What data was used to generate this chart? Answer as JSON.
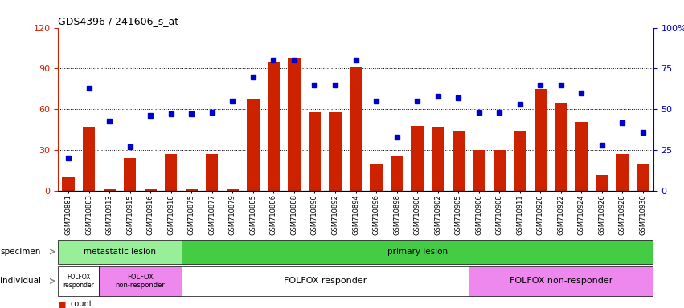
{
  "title": "GDS4396 / 241606_s_at",
  "samples": [
    "GSM710881",
    "GSM710883",
    "GSM710913",
    "GSM710915",
    "GSM710916",
    "GSM710918",
    "GSM710875",
    "GSM710877",
    "GSM710879",
    "GSM710885",
    "GSM710886",
    "GSM710888",
    "GSM710890",
    "GSM710892",
    "GSM710894",
    "GSM710896",
    "GSM710898",
    "GSM710900",
    "GSM710902",
    "GSM710905",
    "GSM710906",
    "GSM710908",
    "GSM710911",
    "GSM710920",
    "GSM710922",
    "GSM710924",
    "GSM710926",
    "GSM710928",
    "GSM710930"
  ],
  "counts": [
    10,
    47,
    1,
    24,
    1,
    27,
    1,
    27,
    1,
    67,
    95,
    98,
    58,
    58,
    91,
    20,
    26,
    48,
    47,
    44,
    30,
    30,
    44,
    75,
    65,
    51,
    12,
    27,
    20
  ],
  "percentiles": [
    20,
    63,
    43,
    27,
    46,
    47,
    47,
    48,
    55,
    70,
    80,
    80,
    65,
    65,
    80,
    55,
    33,
    55,
    58,
    57,
    48,
    48,
    53,
    65,
    65,
    60,
    28,
    42,
    36
  ],
  "bar_color": "#cc2200",
  "dot_color": "#0000cc",
  "ylim_left": [
    0,
    120
  ],
  "ylim_right": [
    0,
    100
  ],
  "yticks_left": [
    0,
    30,
    60,
    90,
    120
  ],
  "yticks_right": [
    0,
    25,
    50,
    75,
    100
  ],
  "specimen_groups": [
    {
      "label": "metastatic lesion",
      "start": 0,
      "end": 5,
      "color": "#99ee99"
    },
    {
      "label": "primary lesion",
      "start": 6,
      "end": 28,
      "color": "#44cc44"
    }
  ],
  "individual_groups": [
    {
      "label": "FOLFOX\nresponder",
      "start": 0,
      "end": 1,
      "color": "#ffffff",
      "fontsize": 5.5
    },
    {
      "label": "FOLFOX\nnon-responder",
      "start": 2,
      "end": 5,
      "color": "#ee88ee",
      "fontsize": 6
    },
    {
      "label": "FOLFOX responder",
      "start": 6,
      "end": 19,
      "color": "#ffffff",
      "fontsize": 8
    },
    {
      "label": "FOLFOX non-responder",
      "start": 20,
      "end": 28,
      "color": "#ee88ee",
      "fontsize": 8
    }
  ],
  "bg_color": "#ffffff",
  "title_color": "#000000",
  "left_axis_color": "#cc2200",
  "right_axis_color": "#0000cc"
}
